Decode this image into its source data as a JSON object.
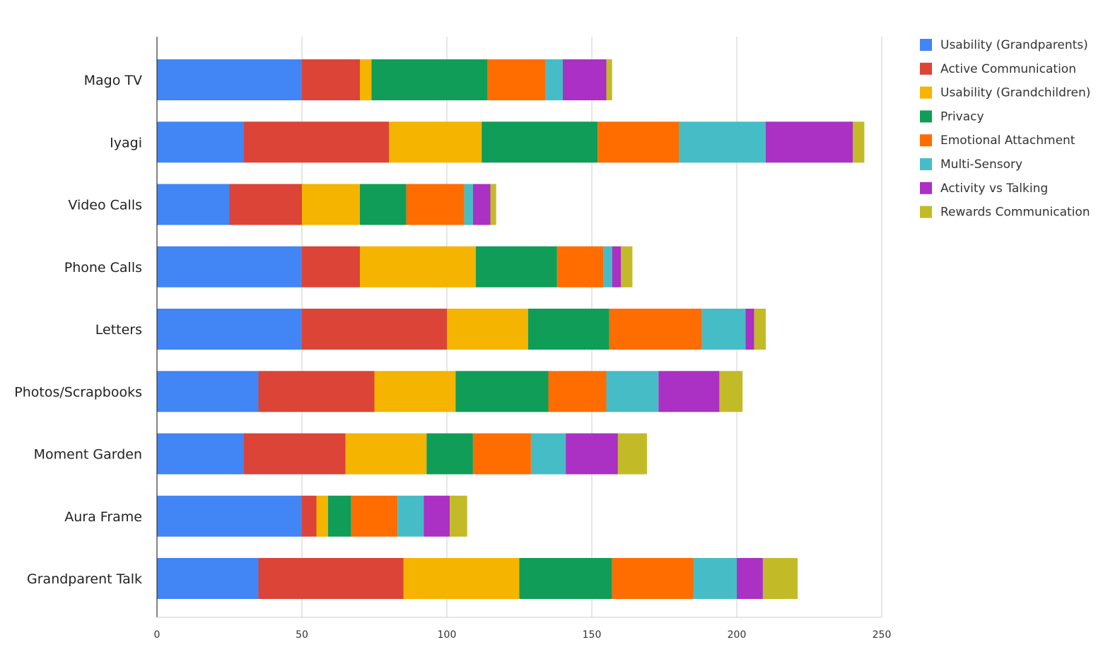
{
  "chart_data": {
    "type": "bar",
    "orientation": "horizontal",
    "stacked": true,
    "title": "",
    "xlabel": "",
    "ylabel": "",
    "xlim": [
      0,
      250
    ],
    "xticks": [
      0,
      50,
      100,
      150,
      200,
      250
    ],
    "grid": true,
    "legend_position": "top-right",
    "categories": [
      "Mago TV",
      "Iyagi",
      "Video Calls",
      "Phone Calls",
      "Letters",
      "Photos/Scrapbooks",
      "Moment Garden",
      "Aura Frame",
      "Grandparent Talk"
    ],
    "series": [
      {
        "name": "Usability (Grandparents)",
        "color": "#4285F4",
        "values": [
          50,
          30,
          25,
          50,
          50,
          35,
          30,
          50,
          35
        ]
      },
      {
        "name": "Active Communication",
        "color": "#DB4437",
        "values": [
          20,
          50,
          25,
          20,
          50,
          40,
          35,
          5,
          50
        ]
      },
      {
        "name": "Usability (Grandchildren)",
        "color": "#F4B400",
        "values": [
          4,
          32,
          20,
          40,
          28,
          28,
          28,
          4,
          40
        ]
      },
      {
        "name": "Privacy",
        "color": "#0F9D58",
        "values": [
          40,
          40,
          16,
          28,
          28,
          32,
          16,
          8,
          32
        ]
      },
      {
        "name": "Emotional Attachment",
        "color": "#FF6D01",
        "values": [
          20,
          28,
          20,
          16,
          32,
          20,
          20,
          16,
          28
        ]
      },
      {
        "name": "Multi-Sensory",
        "color": "#46BDC6",
        "values": [
          6,
          30,
          3,
          3,
          15,
          18,
          12,
          9,
          15
        ]
      },
      {
        "name": "Activity vs Talking",
        "color": "#AB30C4",
        "values": [
          15,
          30,
          6,
          3,
          3,
          21,
          18,
          9,
          9
        ]
      },
      {
        "name": "Rewards Communication",
        "color": "#C2BB27",
        "values": [
          2,
          4,
          2,
          4,
          4,
          8,
          10,
          6,
          12
        ]
      }
    ]
  }
}
